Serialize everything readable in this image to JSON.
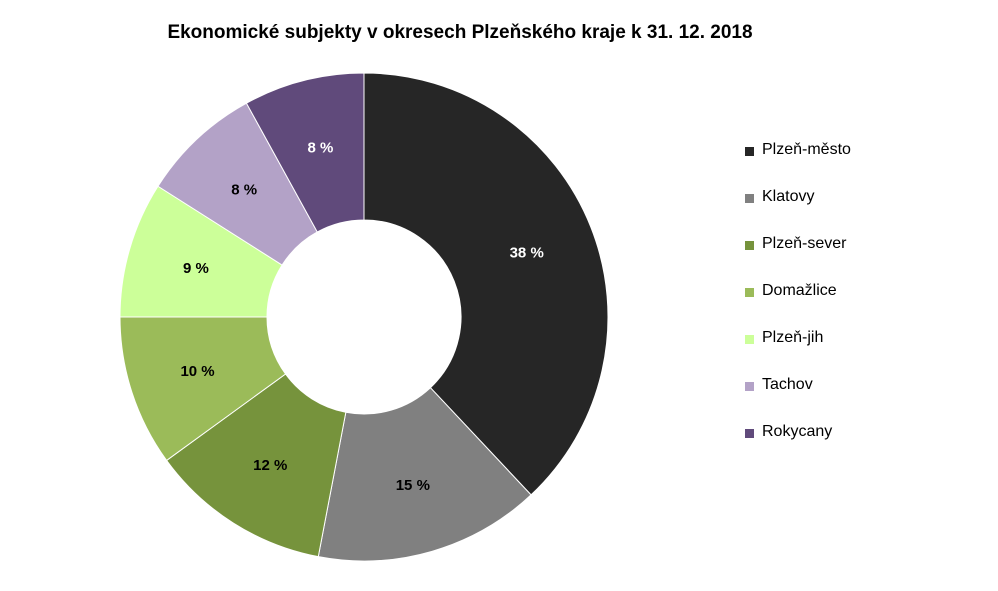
{
  "chart_data": {
    "type": "pie",
    "variant": "donut",
    "title": "Ekonomické subjekty v okresech Plzeňského kraje k 31. 12. 2018",
    "categories": [
      "Plzeň-město",
      "Klatovy",
      "Plzeň-sever",
      "Domažlice",
      "Plzeň-jih",
      "Tachov",
      "Rokycany"
    ],
    "values": [
      38,
      15,
      12,
      10,
      9,
      8,
      8
    ],
    "data_labels": [
      "38 %",
      "15 %",
      "12 %",
      "10 %",
      "9 %",
      "8 %",
      "8 %"
    ],
    "colors": [
      "#262626",
      "#808080",
      "#76933c",
      "#9bbb59",
      "#ccff99",
      "#b3a2c7",
      "#604a7b"
    ],
    "label_colors": [
      "#ffffff",
      "#000000",
      "#000000",
      "#000000",
      "#000000",
      "#000000",
      "#ffffff"
    ],
    "legend_position": "right",
    "start_angle_deg": 0,
    "direction": "clockwise"
  }
}
